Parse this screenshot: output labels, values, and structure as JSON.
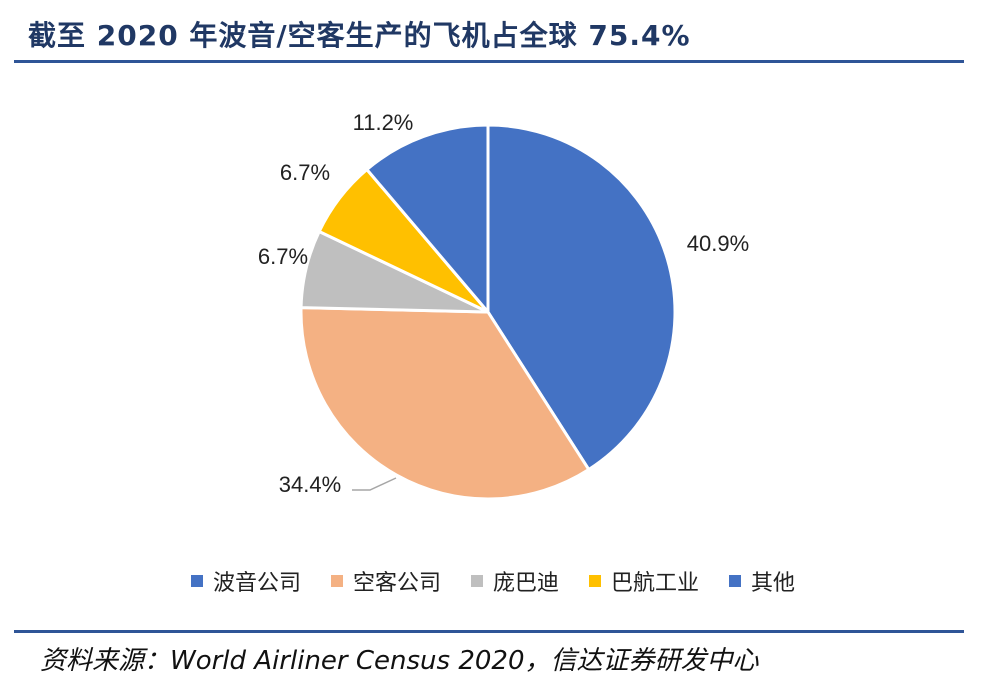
{
  "header": {
    "title": "截至 2020 年波音/空客生产的飞机占全球 75.4%"
  },
  "chart_data": {
    "type": "pie",
    "categories": [
      "波音公司",
      "空客公司",
      "庞巴迪",
      "巴航工业",
      "其他"
    ],
    "values": [
      40.9,
      34.4,
      6.7,
      6.7,
      11.2
    ],
    "value_labels": [
      "40.9%",
      "34.4%",
      "6.7%",
      "6.7%",
      "11.2%"
    ],
    "colors": [
      "#4472c4",
      "#f4b183",
      "#bfbfbf",
      "#ffc000",
      "#4472c4"
    ],
    "legend_position": "bottom"
  },
  "footer": {
    "source": "资料来源：World Airliner Census 2020，信达证券研发中心"
  }
}
